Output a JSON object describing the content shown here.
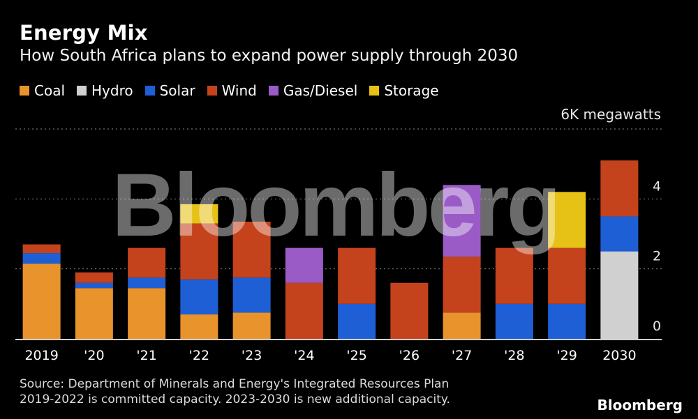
{
  "header": {
    "title": "Energy Mix",
    "subtitle": "How South Africa plans to expand power supply through 2030"
  },
  "legend": [
    {
      "label": "Coal",
      "color": "#e8932c"
    },
    {
      "label": "Hydro",
      "color": "#d0d0d0"
    },
    {
      "label": "Solar",
      "color": "#1f5fd6"
    },
    {
      "label": "Wind",
      "color": "#c4431d"
    },
    {
      "label": "Gas/Diesel",
      "color": "#9a5bc7"
    },
    {
      "label": "Storage",
      "color": "#e6c217"
    }
  ],
  "unit_label": "6K megawatts",
  "watermark": "Bloomberg",
  "footer": {
    "source_line1": "Source: Department of Minerals and Energy's Integrated Resources Plan",
    "source_line2": "2019-2022 is committed capacity. 2023-2030 is new additional capacity.",
    "brand": "Bloomberg"
  },
  "chart_data": {
    "type": "bar",
    "stacked": true,
    "unit": "thousand megawatts",
    "categories": [
      "2019",
      "'20",
      "'21",
      "'22",
      "'23",
      "'24",
      "'25",
      "'26",
      "'27",
      "'28",
      "'29",
      "2030"
    ],
    "ylim": [
      0,
      6
    ],
    "yticks": [
      0,
      2,
      4
    ],
    "ytick_labels": [
      "0",
      "2",
      "4"
    ],
    "grid": true,
    "legend_position": "top-left",
    "series": [
      {
        "name": "Coal",
        "color": "#e8932c",
        "values": [
          2.15,
          1.45,
          1.45,
          0.7,
          0.75,
          0,
          0,
          0,
          0.75,
          0,
          0,
          0
        ]
      },
      {
        "name": "Hydro",
        "color": "#d0d0d0",
        "values": [
          0,
          0,
          0,
          0,
          0,
          0,
          0,
          0,
          0,
          0,
          0,
          2.5
        ]
      },
      {
        "name": "Solar",
        "color": "#1f5fd6",
        "values": [
          0.3,
          0.15,
          0.3,
          1.0,
          1.0,
          0,
          1.0,
          0,
          0,
          1.0,
          1.0,
          1.0
        ]
      },
      {
        "name": "Wind",
        "color": "#c4431d",
        "values": [
          0.25,
          0.3,
          0.85,
          1.6,
          1.6,
          1.6,
          1.6,
          1.6,
          1.6,
          1.6,
          1.6,
          1.6
        ]
      },
      {
        "name": "Gas/Diesel",
        "color": "#9a5bc7",
        "values": [
          0,
          0,
          0,
          0,
          0,
          1.0,
          0,
          0,
          2.05,
          0,
          0,
          0
        ]
      },
      {
        "name": "Storage",
        "color": "#e6c217",
        "values": [
          0,
          0,
          0,
          0.55,
          0,
          0,
          0,
          0,
          0,
          0,
          1.6,
          0
        ]
      }
    ]
  }
}
